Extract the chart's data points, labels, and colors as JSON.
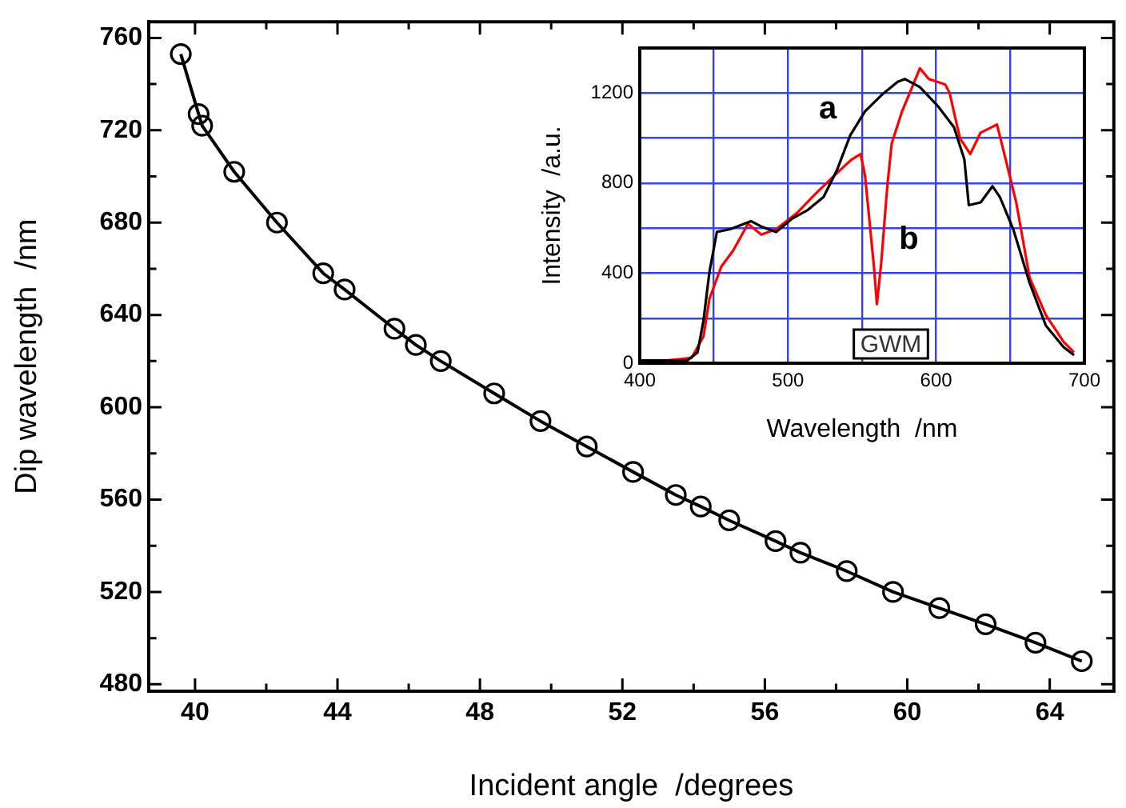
{
  "chart_data": [
    {
      "type": "line",
      "xlabel": "Incident angle  /degrees",
      "ylabel": "Dip wavelength  /nm",
      "marker": "circle",
      "grid": false,
      "xlim": [
        38.7,
        65.8
      ],
      "ylim": [
        477,
        767
      ],
      "xticks": [
        40,
        {
          "value": 42,
          "label": null
        },
        44,
        {
          "value": 46,
          "label": null
        },
        48,
        {
          "value": 50,
          "label": null
        },
        52,
        {
          "value": 54,
          "label": null
        },
        56,
        {
          "value": 58,
          "label": null
        },
        60,
        {
          "value": 62,
          "label": null
        },
        64
      ],
      "yticks": [
        480,
        {
          "value": 500,
          "label": null
        },
        520,
        {
          "value": 540,
          "label": null
        },
        560,
        {
          "value": 580,
          "label": null
        },
        600,
        {
          "value": 620,
          "label": null
        },
        640,
        {
          "value": 660,
          "label": null
        },
        680,
        {
          "value": 700,
          "label": null
        },
        720,
        {
          "value": 740,
          "label": null
        },
        760
      ],
      "x": [
        39.6,
        40.1,
        40.2,
        41.1,
        42.3,
        43.6,
        44.2,
        45.6,
        46.2,
        46.9,
        48.4,
        49.7,
        51.0,
        52.3,
        53.5,
        54.2,
        55.0,
        56.3,
        57.0,
        58.3,
        59.6,
        60.9,
        62.2,
        63.6,
        64.9
      ],
      "series": [
        {
          "color": "#000000",
          "values": [
            753,
            727,
            722,
            702,
            680,
            658,
            651,
            634,
            627,
            620,
            606,
            594,
            583,
            572,
            562,
            557,
            551,
            542,
            537,
            529,
            520,
            513,
            506,
            498,
            490
          ]
        }
      ]
    },
    {
      "type": "line",
      "xlabel": "Wavelength  /nm",
      "ylabel": "Intensity  /a.u.",
      "marker": "none",
      "grid": true,
      "annotations": [
        "GWM"
      ],
      "xlim": [
        400,
        700
      ],
      "ylim": [
        0,
        1400
      ],
      "xticks": [
        400,
        {
          "value": 450,
          "label": null
        },
        500,
        {
          "value": 550,
          "label": null
        },
        600,
        {
          "value": 650,
          "label": null
        },
        700
      ],
      "yticks": [
        0,
        {
          "value": 200,
          "label": null
        },
        400,
        {
          "value": 600,
          "label": null
        },
        800,
        {
          "value": 1000,
          "label": null
        },
        1200
      ],
      "series": [
        {
          "name": "a",
          "color": "#000000",
          "x": [
            400,
            432,
            439,
            443,
            447,
            452,
            461,
            475,
            482,
            492,
            503,
            513,
            524,
            533,
            542,
            552,
            563,
            574,
            579,
            589,
            601,
            612,
            619,
            622,
            630,
            638,
            643,
            652,
            663,
            674,
            686,
            693
          ],
          "values": [
            12,
            12,
            48,
            190,
            405,
            583,
            595,
            631,
            607,
            583,
            643,
            679,
            738,
            857,
            1012,
            1119,
            1190,
            1250,
            1262,
            1226,
            1143,
            1048,
            905,
            702,
            714,
            786,
            738,
            595,
            357,
            167,
            71,
            36
          ]
        },
        {
          "name": "b",
          "color": "#ff0000",
          "x": [
            418,
            435,
            443,
            447,
            455,
            463,
            473,
            482,
            492,
            506,
            520,
            535,
            543,
            549,
            552,
            558,
            560,
            563,
            567,
            570,
            577,
            583,
            589,
            595,
            606,
            609,
            616,
            623,
            630,
            641,
            646,
            654,
            663,
            674,
            686,
            693
          ],
          "values": [
            12,
            24,
            119,
            286,
            429,
            500,
            619,
            571,
            595,
            667,
            762,
            857,
            905,
            929,
            833,
            429,
            262,
            452,
            786,
            976,
            1119,
            1214,
            1310,
            1262,
            1238,
            1202,
            1000,
            929,
            1024,
            1060,
            929,
            714,
            381,
            214,
            95,
            48
          ]
        }
      ]
    }
  ]
}
